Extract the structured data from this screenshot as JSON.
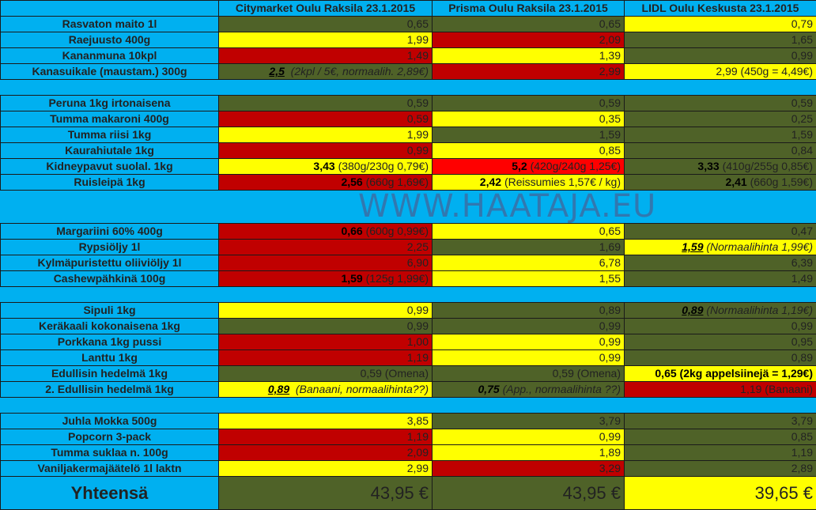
{
  "headers": {
    "store1": "Citymarket Oulu Raksila 23.1.2015",
    "store2": "Prisma Oulu Raksila 23.1.2015",
    "store3": "LIDL Oulu Keskusta 23.1.2015"
  },
  "watermark": "WWW.HAATAJA.EU",
  "colors": {
    "green": "#4F6228",
    "yellow": "#FFFF00",
    "red": "#C00000",
    "bright_red": "#FF0000",
    "blue": "#00B0F0"
  },
  "rows": [
    {
      "label": "Rasvaton maito 1l",
      "c1": "0,65",
      "c2": "0,65",
      "c3": "0,79"
    },
    {
      "label": "Raejuusto 400g",
      "c1": "1,99",
      "c2": "2,09",
      "c3": "1,65"
    },
    {
      "label": "Kananmuna 10kpl",
      "c1": "1,49",
      "c2": "1,39",
      "c3": "0,99"
    },
    {
      "label": "Kanasuikale (maustam.) 300g",
      "c1_bold": "2,5",
      "c1_note": "(2kpl / 5€, normaalih. 2,89€)",
      "c2": "2,99",
      "c3": "2,99 (450g = 4,49€)"
    },
    {
      "label": "Peruna 1kg irtonaisena",
      "c1": "0,59",
      "c2": "0,59",
      "c3": "0,59"
    },
    {
      "label": "Tumma makaroni 400g",
      "c1": "0,59",
      "c2": "0,35",
      "c3": "0,25"
    },
    {
      "label": "Tumma riisi 1kg",
      "c1": "1,99",
      "c2": "1,59",
      "c3": "1,59"
    },
    {
      "label": "Kaurahiutale 1kg",
      "c1": "0,99",
      "c2": "0,85",
      "c3": "0,84"
    },
    {
      "label": "Kidneypavut suolal. 1kg",
      "c1_bold": "3,43",
      "c1_note": "(380g/230g 0,79€)",
      "c2_bold": "5,2",
      "c2_note": "(420g/240g 1,25€)",
      "c3_bold": "3,33",
      "c3_note": "(410g/255g 0,85€)"
    },
    {
      "label": "Ruisleipä 1kg",
      "c1_bold": "2,56",
      "c1_note": "(660g 1,69€)",
      "c2_bold": "2,42",
      "c2_note": "(Reissumies 1,57€ / kg)",
      "c3_bold": "2,41",
      "c3_note": "(660g 1,59€)"
    },
    {
      "label": "Margariini 60% 400g",
      "c1_bold": "0,66",
      "c1_note": "(600g 0,99€)",
      "c2": "0,65",
      "c3": "0,47"
    },
    {
      "label": "Rypsiöljy 1l",
      "c1": "2,25",
      "c2": "1,69",
      "c3_bold": "1,59",
      "c3_note": "(Normaalihinta 1,99€)"
    },
    {
      "label": "Kylmäpuristettu oliiviöljy 1l",
      "c1": "6,90",
      "c2": "6,78",
      "c3": "6,39"
    },
    {
      "label": "Cashewpähkinä 100g",
      "c1_bold": "1,59",
      "c1_note": "(125g 1,99€)",
      "c2": "1,55",
      "c3": "1,49"
    },
    {
      "label": "Sipuli 1kg",
      "c1": "0,99",
      "c2": "0,89",
      "c3_bold": "0,89",
      "c3_note": "(Normaalihinta 1,19€)"
    },
    {
      "label": "Keräkaali kokonaisena 1kg",
      "c1": "0,99",
      "c2": "0,99",
      "c3": "0,99"
    },
    {
      "label": "Porkkana 1kg pussi",
      "c1": "1,00",
      "c2": "0,99",
      "c3": "0,95"
    },
    {
      "label": "Lanttu 1kg",
      "c1": "1,19",
      "c2": "0,99",
      "c3": "0,89"
    },
    {
      "label": "Edullisin hedelmä 1kg",
      "c1": "0,59 (Omena)",
      "c2": "0,59 (Omena)",
      "c3": "0,65 (2kg appelsiinejä = 1,29€)"
    },
    {
      "label": "2. Edullisin hedelmä 1kg",
      "c1_bold": "0,89",
      "c1_note": "(Banaani, normaalihinta??)",
      "c2_bold": "0,75",
      "c2_note": "(App., normaalihinta ??)",
      "c3": "1,19 (Banaani)"
    },
    {
      "label": "Juhla Mokka 500g",
      "c1": "3,85",
      "c2": "3,79",
      "c3": "3,79"
    },
    {
      "label": "Popcorn 3-pack",
      "c1": "1,19",
      "c2": "0,99",
      "c3": "0,85"
    },
    {
      "label": "Tumma suklaa  n. 100g",
      "c1": "2,09",
      "c2": "1,89",
      "c3": "1,19"
    },
    {
      "label": "Vaniljakermajäätelö 1l laktn",
      "c1": "2,99",
      "c2": "3,29",
      "c3": "2,89"
    }
  ],
  "total": {
    "label": "Yhteensä",
    "c1": "43,95 €",
    "c2": "43,95 €",
    "c3": "39,65 €"
  }
}
